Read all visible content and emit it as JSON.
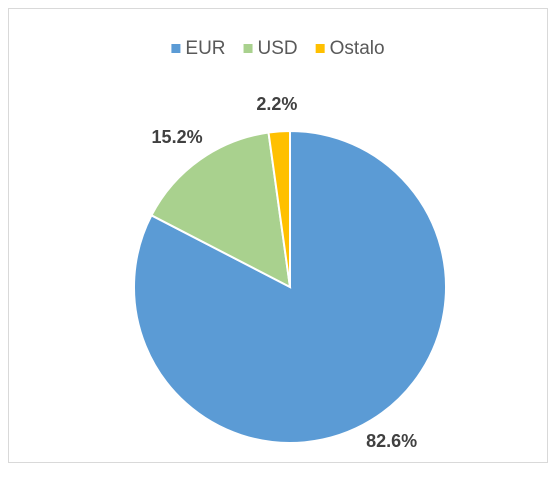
{
  "chart_data": {
    "type": "pie",
    "categories": [
      "EUR",
      "USD",
      "Ostalo"
    ],
    "values": [
      82.6,
      15.2,
      2.2
    ],
    "value_labels": [
      "82.6%",
      "15.2%",
      "2.2%"
    ],
    "colors": [
      "#5b9bd5",
      "#a9d18e",
      "#ffc000"
    ],
    "legend": "top"
  }
}
